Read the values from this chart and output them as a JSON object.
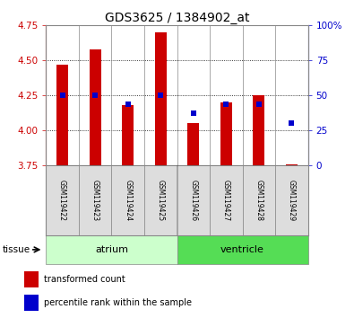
{
  "title": "GDS3625 / 1384902_at",
  "samples": [
    "GSM119422",
    "GSM119423",
    "GSM119424",
    "GSM119425",
    "GSM119426",
    "GSM119427",
    "GSM119428",
    "GSM119429"
  ],
  "bar_tops": [
    4.47,
    4.58,
    4.18,
    4.7,
    4.05,
    4.2,
    4.25,
    3.76
  ],
  "bar_base": 3.75,
  "blue_percentiles": [
    50,
    50,
    44,
    50,
    37,
    44,
    44,
    30
  ],
  "ylim_left": [
    3.75,
    4.75
  ],
  "ylim_right": [
    0,
    100
  ],
  "yticks_left": [
    3.75,
    4.0,
    4.25,
    4.5,
    4.75
  ],
  "yticks_right": [
    0,
    25,
    50,
    75,
    100
  ],
  "bar_color": "#CC0000",
  "blue_color": "#0000CC",
  "tissue_groups": [
    {
      "label": "atrium",
      "indices": [
        0,
        1,
        2,
        3
      ],
      "color": "#CCFFCC"
    },
    {
      "label": "ventricle",
      "indices": [
        4,
        5,
        6,
        7
      ],
      "color": "#55DD55"
    }
  ],
  "tissue_label": "tissue",
  "legend_items": [
    {
      "color": "#CC0000",
      "label": "transformed count"
    },
    {
      "color": "#0000CC",
      "label": "percentile rank within the sample"
    }
  ],
  "bar_width": 0.35,
  "sample_bg": "#DDDDDD",
  "plot_bg": "#FFFFFF",
  "grid_color": "#000000",
  "spine_color": "#888888"
}
